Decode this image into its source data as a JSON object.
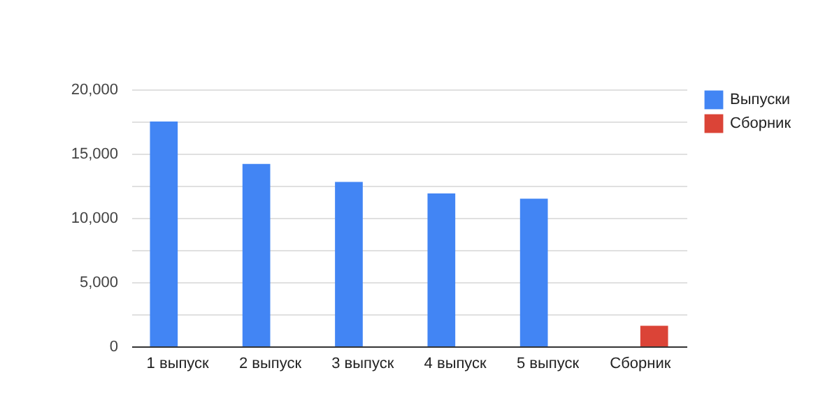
{
  "chart_data": {
    "type": "bar",
    "categories": [
      "1 выпуск",
      "2 выпуск",
      "3 выпуск",
      "4 выпуск",
      "5 выпуск",
      "Сборник"
    ],
    "series": [
      {
        "name": "Выпуски",
        "color": "#4285f4",
        "values": [
          17500,
          14200,
          12800,
          11900,
          11500,
          null
        ]
      },
      {
        "name": "Сборник",
        "color": "#db4437",
        "values": [
          null,
          null,
          null,
          null,
          null,
          1600
        ]
      }
    ],
    "ylim": [
      0,
      20000
    ],
    "yticks": [
      0,
      {
        "value": 2500,
        "label": null
      },
      {
        "value": 5000,
        "label": "5,000"
      },
      {
        "value": 7500,
        "label": null
      },
      {
        "value": 10000,
        "label": "10,000"
      },
      {
        "value": 12500,
        "label": null
      },
      {
        "value": 15000,
        "label": "15,000"
      },
      {
        "value": 17500,
        "label": null
      },
      {
        "value": 20000,
        "label": "20,000"
      }
    ],
    "grid": true,
    "legend": "top right"
  }
}
